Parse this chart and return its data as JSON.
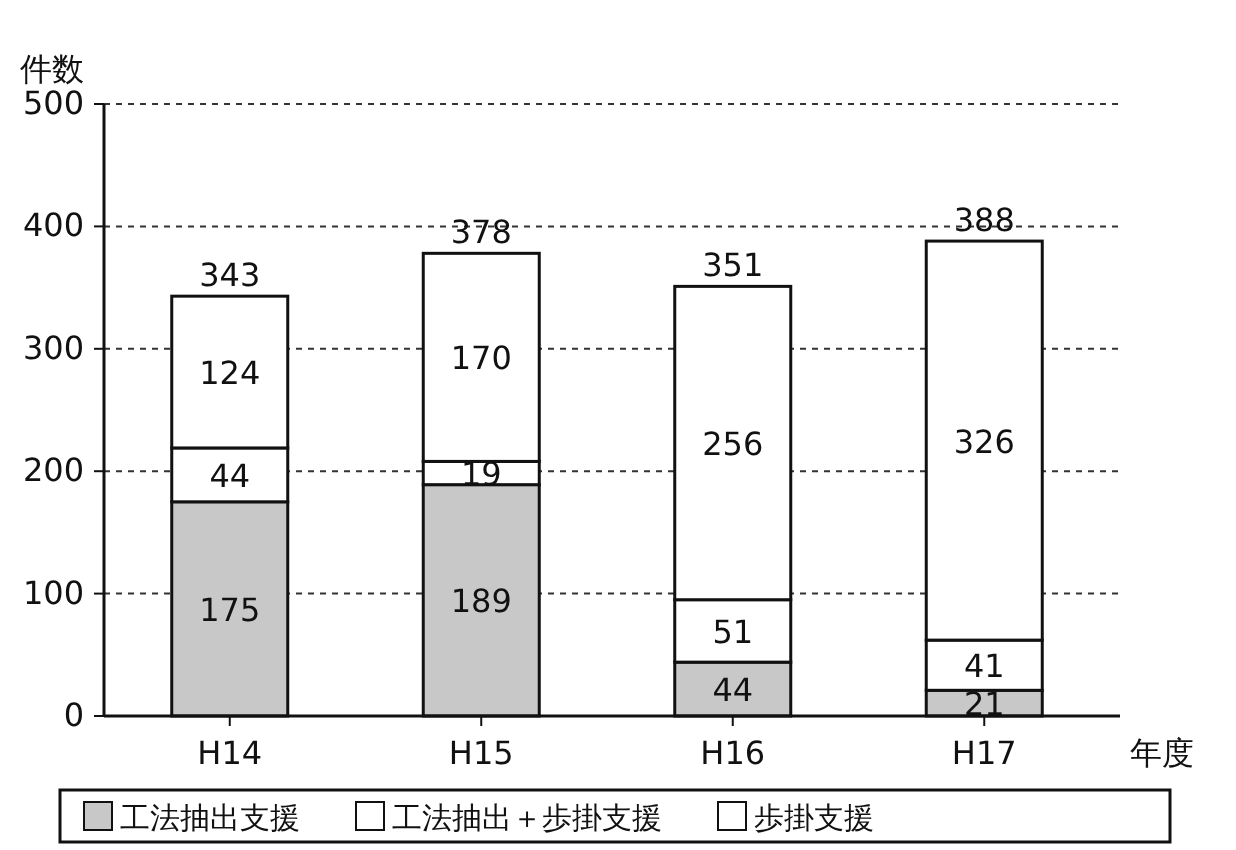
{
  "chart_data": {
    "type": "bar",
    "stacked": true,
    "ylabel": "件数",
    "xlabel": "年度",
    "categories": [
      "H14",
      "H15",
      "H16",
      "H17"
    ],
    "series": [
      {
        "name": "工法抽出支援",
        "color": "#c8c8c8",
        "values": [
          175,
          189,
          44,
          21
        ]
      },
      {
        "name": "工法抽出＋歩掛支援",
        "color": "#ffffff",
        "values": [
          44,
          19,
          51,
          41
        ]
      },
      {
        "name": "歩掛支援",
        "color": "#ffffff",
        "values": [
          124,
          170,
          256,
          326
        ]
      }
    ],
    "totals": [
      "343",
      "378",
      "351",
      "388"
    ],
    "ylim": [
      0,
      500
    ],
    "yticks": [
      0,
      100,
      200,
      300,
      400,
      500
    ],
    "grid": "y",
    "legend": "bottom",
    "data_labels": true
  }
}
